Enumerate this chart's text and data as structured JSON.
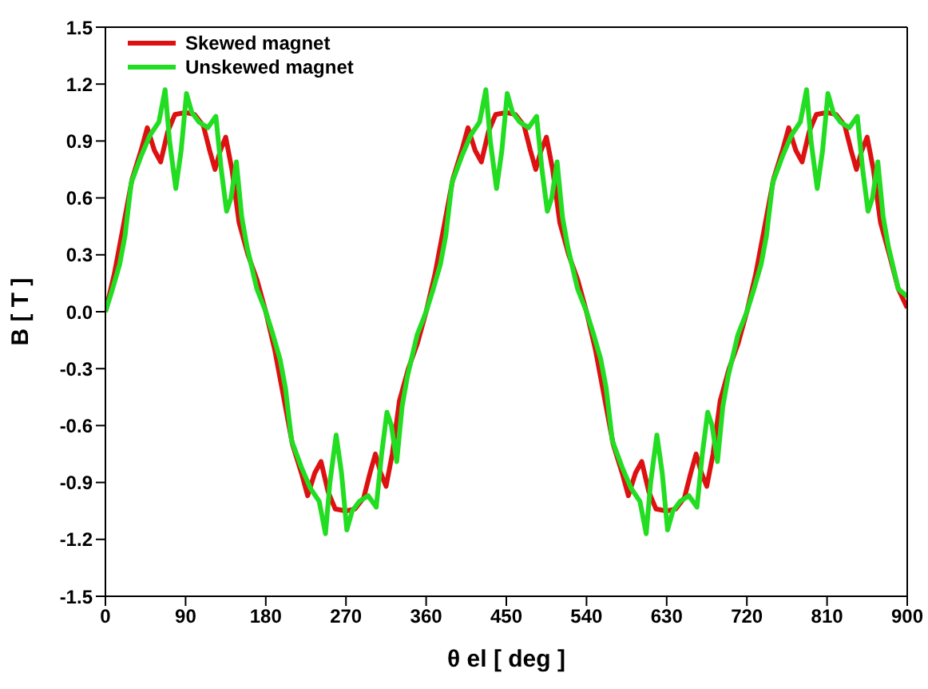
{
  "chart_data": {
    "type": "line",
    "xlabel": "θ el [ deg ]",
    "ylabel": "B [ T ]",
    "xlim": [
      0,
      900
    ],
    "xticks": [
      0,
      90,
      180,
      270,
      360,
      450,
      540,
      630,
      720,
      810,
      900
    ],
    "ylim": [
      -1.5,
      1.5
    ],
    "yticks": [
      -1.5,
      -1.2,
      -0.9,
      -0.6,
      -0.3,
      {
        "value": 0,
        "label": "0.0"
      },
      0.3,
      0.6,
      0.9,
      1.2,
      1.5
    ],
    "legend": "top left",
    "grid": false,
    "marker": "none",
    "line_style": "solid",
    "series": [
      {
        "name": "Skewed magnet",
        "color": "#dd1111",
        "x": [
          0,
          10,
          20,
          30,
          40,
          47,
          55,
          62,
          70,
          78,
          90,
          100,
          110,
          117,
          123,
          129,
          135,
          142,
          150,
          160,
          170,
          180,
          190,
          200,
          210,
          220,
          227,
          235,
          242,
          250,
          258,
          270,
          280,
          290,
          297,
          303,
          309,
          315,
          322,
          330,
          340,
          350,
          360,
          370,
          380,
          390,
          400,
          407,
          415,
          422,
          430,
          438,
          450,
          460,
          470,
          477,
          483,
          489,
          495,
          502,
          510,
          520,
          530,
          540,
          550,
          560,
          570,
          580,
          587,
          595,
          602,
          610,
          618,
          630,
          640,
          650,
          657,
          663,
          669,
          675,
          682,
          690,
          700,
          710,
          720,
          730,
          740,
          750,
          760,
          767,
          775,
          782,
          790,
          798,
          810,
          820,
          830,
          837,
          843,
          849,
          855,
          862,
          870,
          880,
          890,
          900
        ],
        "values": [
          0,
          0.2,
          0.45,
          0.7,
          0.85,
          0.97,
          0.85,
          0.79,
          0.95,
          1.04,
          1.05,
          1.04,
          0.98,
          0.85,
          0.75,
          0.85,
          0.92,
          0.75,
          0.47,
          0.3,
          0.17,
          0,
          -0.2,
          -0.45,
          -0.7,
          -0.85,
          -0.97,
          -0.85,
          -0.79,
          -0.95,
          -1.04,
          -1.05,
          -1.04,
          -0.98,
          -0.85,
          -0.75,
          -0.85,
          -0.92,
          -0.75,
          -0.47,
          -0.3,
          -0.17,
          0,
          0.2,
          0.45,
          0.7,
          0.85,
          0.97,
          0.85,
          0.79,
          0.95,
          1.04,
          1.05,
          1.04,
          0.98,
          0.85,
          0.75,
          0.85,
          0.92,
          0.75,
          0.47,
          0.3,
          0.17,
          0,
          -0.2,
          -0.45,
          -0.7,
          -0.85,
          -0.97,
          -0.85,
          -0.79,
          -0.95,
          -1.04,
          -1.05,
          -1.04,
          -0.98,
          -0.85,
          -0.75,
          -0.85,
          -0.92,
          -0.75,
          -0.47,
          -0.3,
          -0.17,
          0,
          0.2,
          0.45,
          0.7,
          0.85,
          0.97,
          0.85,
          0.79,
          0.95,
          1.04,
          1.05,
          1.04,
          0.98,
          0.85,
          0.75,
          0.85,
          0.92,
          0.75,
          0.47,
          0.3,
          0.12,
          0.02
        ]
      },
      {
        "name": "Unskewed magnet",
        "color": "#22dd22",
        "x": [
          0,
          8,
          16,
          22,
          29,
          40,
          50,
          60,
          67,
          72,
          79,
          85,
          91,
          97,
          105,
          115,
          124,
          130,
          136,
          141,
          147,
          153,
          159,
          170,
          180,
          188,
          196,
          202,
          209,
          220,
          230,
          240,
          247,
          252,
          259,
          265,
          271,
          277,
          285,
          295,
          304,
          310,
          316,
          321,
          327,
          333,
          339,
          350,
          360,
          368,
          376,
          382,
          389,
          400,
          410,
          420,
          427,
          432,
          439,
          445,
          451,
          457,
          465,
          475,
          484,
          490,
          496,
          501,
          507,
          513,
          519,
          530,
          540,
          548,
          556,
          562,
          569,
          580,
          590,
          600,
          607,
          612,
          619,
          625,
          631,
          637,
          645,
          655,
          664,
          670,
          676,
          681,
          687,
          693,
          699,
          710,
          720,
          728,
          736,
          742,
          749,
          760,
          770,
          780,
          787,
          792,
          799,
          805,
          811,
          817,
          825,
          835,
          844,
          850,
          856,
          861,
          867,
          873,
          879,
          890,
          900
        ],
        "values": [
          0,
          0.12,
          0.25,
          0.4,
          0.68,
          0.82,
          0.93,
          1.0,
          1.17,
          0.9,
          0.65,
          0.85,
          1.15,
          1.05,
          1.0,
          0.97,
          1.03,
          0.75,
          0.53,
          0.6,
          0.79,
          0.5,
          0.34,
          0.12,
          0,
          -0.12,
          -0.25,
          -0.4,
          -0.68,
          -0.82,
          -0.93,
          -1.0,
          -1.17,
          -0.9,
          -0.65,
          -0.85,
          -1.15,
          -1.05,
          -1.0,
          -0.97,
          -1.03,
          -0.75,
          -0.53,
          -0.6,
          -0.79,
          -0.5,
          -0.34,
          -0.12,
          0,
          0.12,
          0.25,
          0.4,
          0.68,
          0.82,
          0.93,
          1.0,
          1.17,
          0.9,
          0.65,
          0.85,
          1.15,
          1.05,
          1.0,
          0.97,
          1.03,
          0.75,
          0.53,
          0.6,
          0.79,
          0.5,
          0.34,
          0.12,
          0,
          -0.12,
          -0.25,
          -0.4,
          -0.68,
          -0.82,
          -0.93,
          -1.0,
          -1.17,
          -0.9,
          -0.65,
          -0.85,
          -1.15,
          -1.05,
          -1.0,
          -0.97,
          -1.03,
          -0.75,
          -0.53,
          -0.6,
          -0.79,
          -0.5,
          -0.34,
          -0.12,
          0,
          0.12,
          0.25,
          0.4,
          0.68,
          0.82,
          0.93,
          1.0,
          1.17,
          0.9,
          0.65,
          0.85,
          1.15,
          1.05,
          1.0,
          0.97,
          1.03,
          0.75,
          0.53,
          0.6,
          0.79,
          0.5,
          0.34,
          0.12,
          0.08
        ]
      }
    ]
  }
}
